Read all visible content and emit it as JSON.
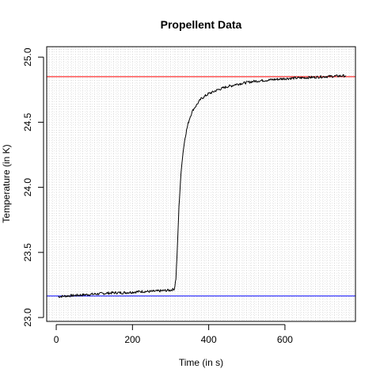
{
  "chart_data": {
    "type": "line",
    "title": "Propellent Data",
    "xlabel": "Time (in s)",
    "ylabel": "Temperature (in K)",
    "xlim": [
      -25,
      785
    ],
    "ylim": [
      22.97,
      25.08
    ],
    "xticks": [
      0,
      200,
      400,
      600
    ],
    "xtick_labels": [
      "0",
      "200",
      "400",
      "600"
    ],
    "yticks": [
      23.0,
      23.5,
      24.0,
      24.5,
      25.0
    ],
    "ytick_labels": [
      "23.0",
      "23.5",
      "24.0",
      "24.5",
      "25.0"
    ],
    "grid": true,
    "series": [
      {
        "color": "#000000",
        "x": [
          5,
          25,
          50,
          75,
          100,
          125,
          150,
          175,
          200,
          225,
          250,
          275,
          300,
          310,
          314,
          318,
          322,
          326,
          330,
          334,
          338,
          342,
          346,
          350,
          355,
          360,
          365,
          370,
          375,
          380,
          390,
          400,
          410,
          420,
          430,
          440,
          450,
          460,
          470,
          480,
          490,
          500,
          520,
          540,
          560,
          580,
          600,
          620,
          640,
          660,
          680,
          700,
          720,
          740,
          760
        ],
        "y": [
          23.16,
          23.165,
          23.17,
          23.175,
          23.18,
          23.185,
          23.19,
          23.19,
          23.195,
          23.2,
          23.2,
          23.205,
          23.21,
          23.22,
          23.3,
          23.55,
          23.85,
          24.05,
          24.2,
          24.3,
          24.38,
          24.44,
          24.49,
          24.53,
          24.57,
          24.6,
          24.62,
          24.64,
          24.66,
          24.68,
          24.7,
          24.72,
          24.73,
          24.745,
          24.755,
          24.765,
          24.775,
          24.78,
          24.79,
          24.795,
          24.8,
          24.805,
          24.815,
          24.82,
          24.825,
          24.83,
          24.835,
          24.838,
          24.84,
          24.843,
          24.846,
          24.85,
          24.852,
          24.855,
          24.857
        ]
      }
    ],
    "hlines": [
      {
        "y": 23.165,
        "color": "#0000ff"
      },
      {
        "y": 24.85,
        "color": "#ff0000"
      }
    ]
  }
}
